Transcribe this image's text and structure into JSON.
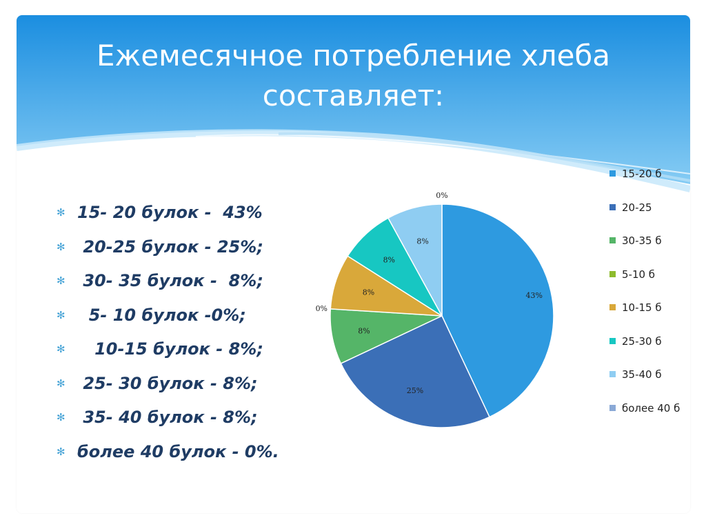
{
  "slide": {
    "title_line1": "Ежемесячное потребление хлеба",
    "title_line2": "составляет:",
    "bullet_glyph": "✻",
    "bullets": [
      "15- 20 булок -  43%",
      " 20-25 булок - 25%;",
      " 30- 35 булок -  8%;",
      "  5- 10 булок -0%;",
      "   10-15 булок - 8%;",
      " 25- 30 булок - 8%;",
      " 35- 40 булок - 8%;",
      "более 40 булок - 0%."
    ]
  },
  "colors": {
    "banner_top": "#1c8fe0",
    "banner_bottom": "#7cc8f4",
    "text_dark_blue": "#1f3c64",
    "bullet_blue": "#46a3d6"
  },
  "chart_data": {
    "type": "pie",
    "title": "",
    "legend_position": "right",
    "slices": [
      {
        "label": "15-20 б",
        "value": 43,
        "data_label": "43%",
        "color": "#2e9ae0"
      },
      {
        "label": "20-25",
        "value": 25,
        "data_label": "25%",
        "color": "#3b6fb7"
      },
      {
        "label": "30-35 б",
        "value": 8,
        "data_label": "8%",
        "color": "#55b568"
      },
      {
        "label": "5-10 б",
        "value": 0,
        "data_label": "0%",
        "color": "#8dbb2d"
      },
      {
        "label": "10-15 б",
        "value": 8,
        "data_label": "8%",
        "color": "#d9a83a"
      },
      {
        "label": "25-30 б",
        "value": 8,
        "data_label": "8%",
        "color": "#17c7c2"
      },
      {
        "label": "35-40 б",
        "value": 8,
        "data_label": "8%",
        "color": "#8fcdf2"
      },
      {
        "label": "более 40 б",
        "value": 0,
        "data_label": "0%",
        "color": "#8aa9d6"
      }
    ]
  }
}
